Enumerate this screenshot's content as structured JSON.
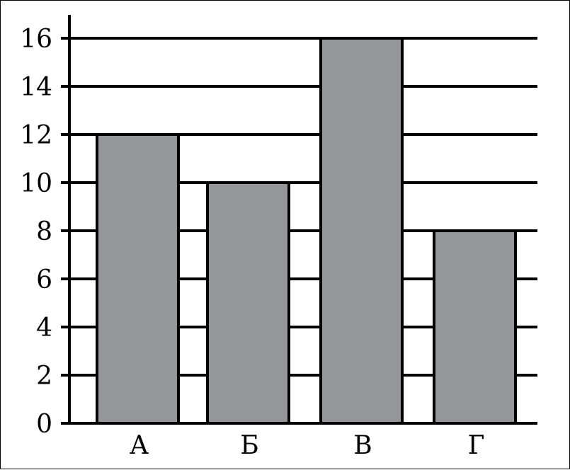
{
  "chart_data": {
    "type": "bar",
    "title": "",
    "xlabel": "",
    "ylabel": "",
    "categories": [
      "А",
      "Б",
      "В",
      "Г"
    ],
    "values": [
      12,
      10,
      16,
      8
    ],
    "ylim": [
      0,
      16
    ],
    "yticks": [
      "0",
      "2",
      "4",
      "6",
      "8",
      "10",
      "12",
      "14",
      "16"
    ],
    "grid": true,
    "legend": "none",
    "colors": {
      "bar_fill": "#959699",
      "bar_stroke": "#000000",
      "grid": "#000000",
      "axis": "#000000"
    }
  }
}
